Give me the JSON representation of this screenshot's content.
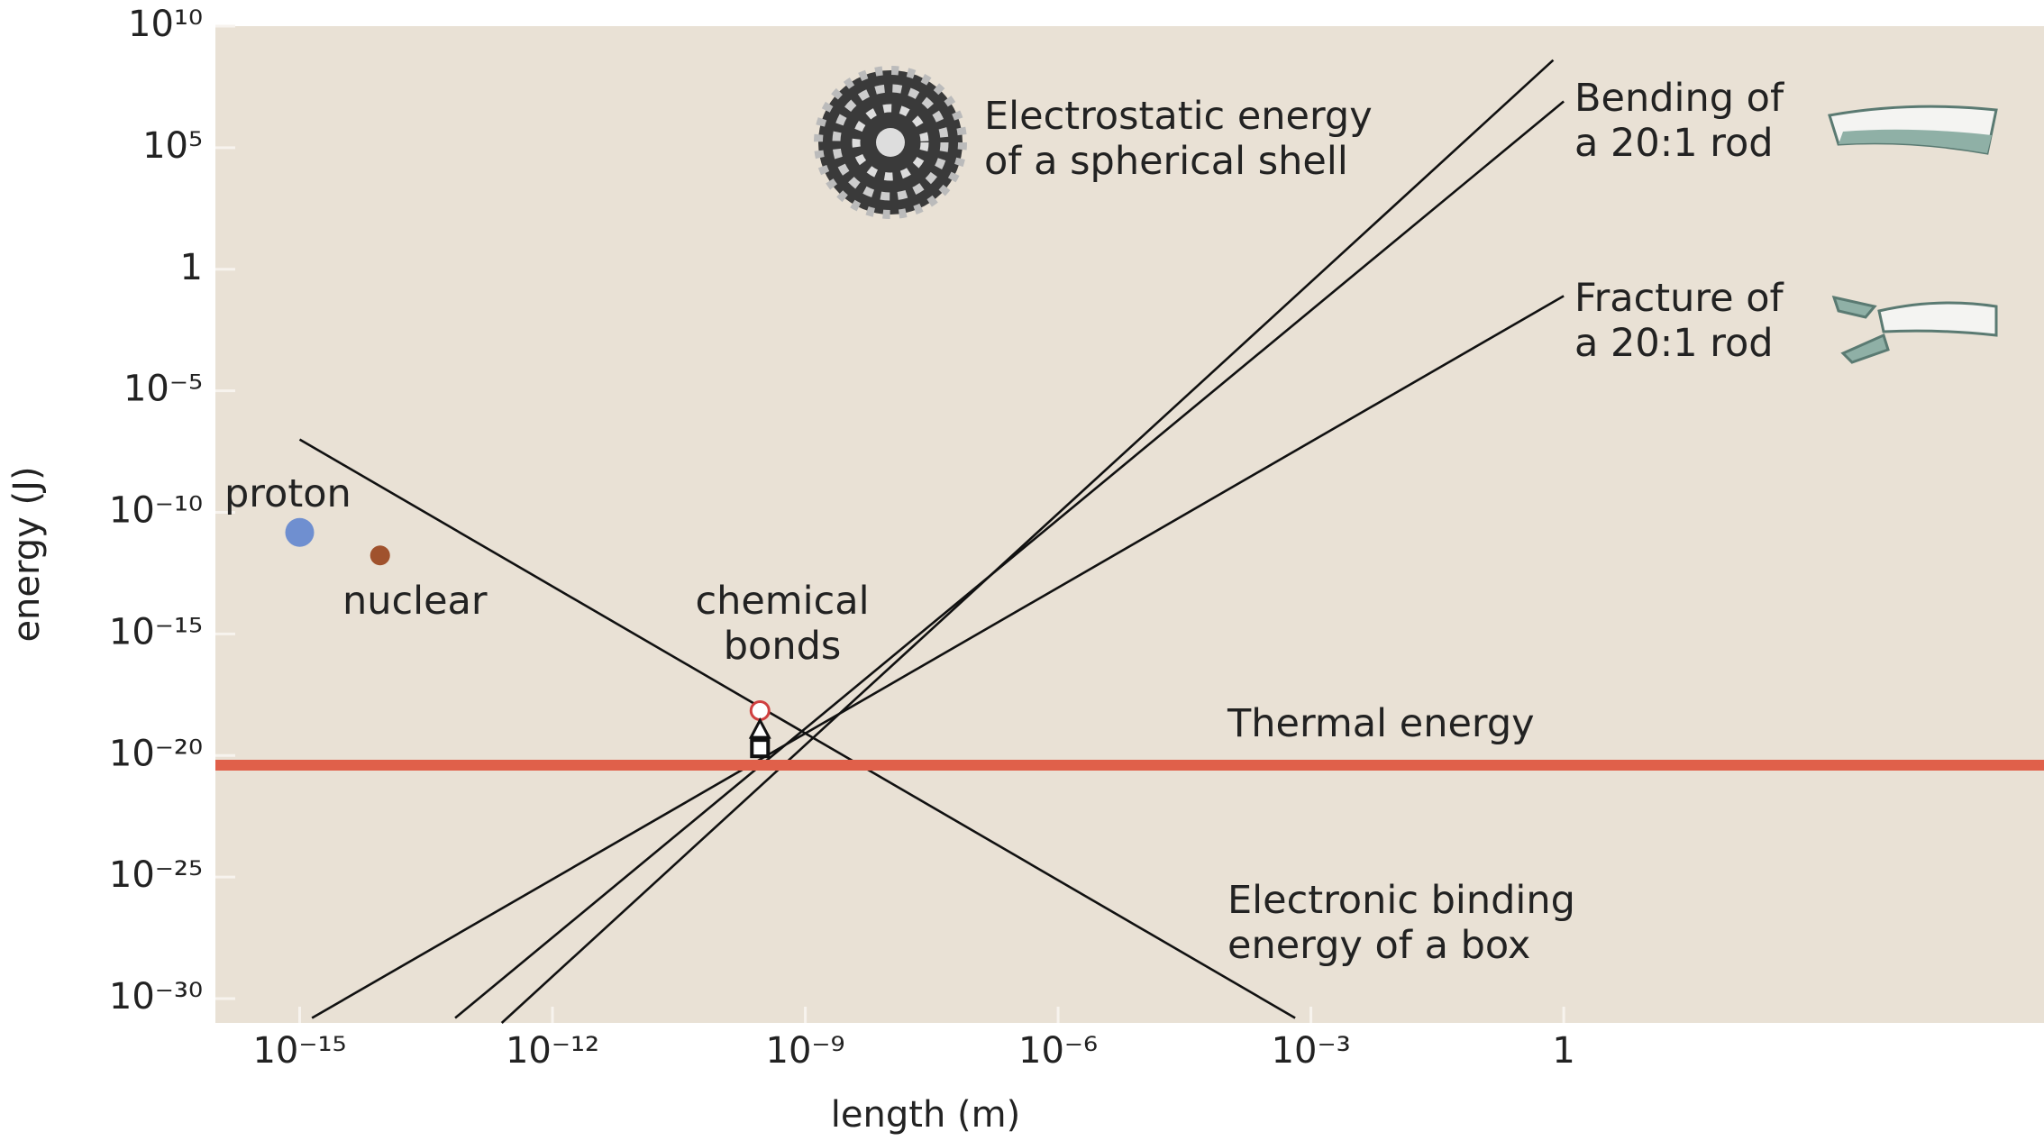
{
  "chart_data": {
    "type": "line",
    "xlabel": "length (m)",
    "ylabel": "energy (J)",
    "xscale": "log",
    "yscale": "log",
    "xlim": [
      1e-16,
      500000.0
    ],
    "ylim": [
      1e-31,
      10000000000.0
    ],
    "xticks": [
      {
        "value": 1e-15,
        "label": "10⁻¹⁵"
      },
      {
        "value": 1e-12,
        "label": "10⁻¹²"
      },
      {
        "value": 1e-09,
        "label": "10⁻⁹"
      },
      {
        "value": 1e-06,
        "label": "10⁻⁶"
      },
      {
        "value": 0.001,
        "label": "10⁻³"
      },
      1
    ],
    "yticks": [
      {
        "value": 10000000000.0,
        "label": "10¹⁰"
      },
      {
        "value": 100000.0,
        "label": "10⁵"
      },
      1,
      {
        "value": 1e-05,
        "label": "10⁻⁵"
      },
      {
        "value": 1e-10,
        "label": "10⁻¹⁰"
      },
      {
        "value": 1e-15,
        "label": "10⁻¹⁵"
      },
      {
        "value": 1e-20,
        "label": "10⁻²⁰"
      },
      {
        "value": 1e-25,
        "label": "10⁻²⁵"
      },
      {
        "value": 1e-30,
        "label": "10⁻³⁰"
      }
    ],
    "series": [
      {
        "name": "Electrostatic energy of a spherical shell",
        "color": "#111111",
        "x": [
          2.5e-13,
          0.75
        ],
        "y": [
          1e-31,
          400000000.0
        ]
      },
      {
        "name": "Bending of a 20:1 rod",
        "color": "#111111",
        "x": [
          7e-14,
          1
        ],
        "y": [
          1.6e-31,
          8000000.0
        ]
      },
      {
        "name": "Fracture of a 20:1 rod",
        "color": "#111111",
        "x": [
          1.4e-15,
          1
        ],
        "y": [
          1.6e-31,
          0.08
        ]
      },
      {
        "name": "Electronic binding energy of a box",
        "color": "#111111",
        "x": [
          1e-15,
          0.00065
        ],
        "y": [
          1e-07,
          1.6e-31
        ]
      },
      {
        "name": "Thermal energy",
        "color": "#e0604a",
        "x": [
          1e-16,
          500000.0
        ],
        "y": [
          4e-21,
          4e-21
        ]
      }
    ],
    "point_groups": [
      {
        "name": "proton",
        "color": "#6f8fd0",
        "x": [
          1e-15
        ],
        "y": [
          1.5e-11
        ],
        "markers": [
          "circle"
        ]
      },
      {
        "name": "nuclear",
        "color": "#a0522d",
        "x": [
          9e-15
        ],
        "y": [
          1.7e-12
        ],
        "markers": [
          "circle"
        ]
      },
      {
        "name": "chemical bonds",
        "color": "#111111",
        "x": [
          2.9e-10,
          2.9e-10,
          2.9e-10
        ],
        "y": [
          7e-19,
          1.1e-19,
          2e-20
        ],
        "markers": [
          "circle",
          "triangle",
          "square"
        ]
      }
    ]
  }
}
